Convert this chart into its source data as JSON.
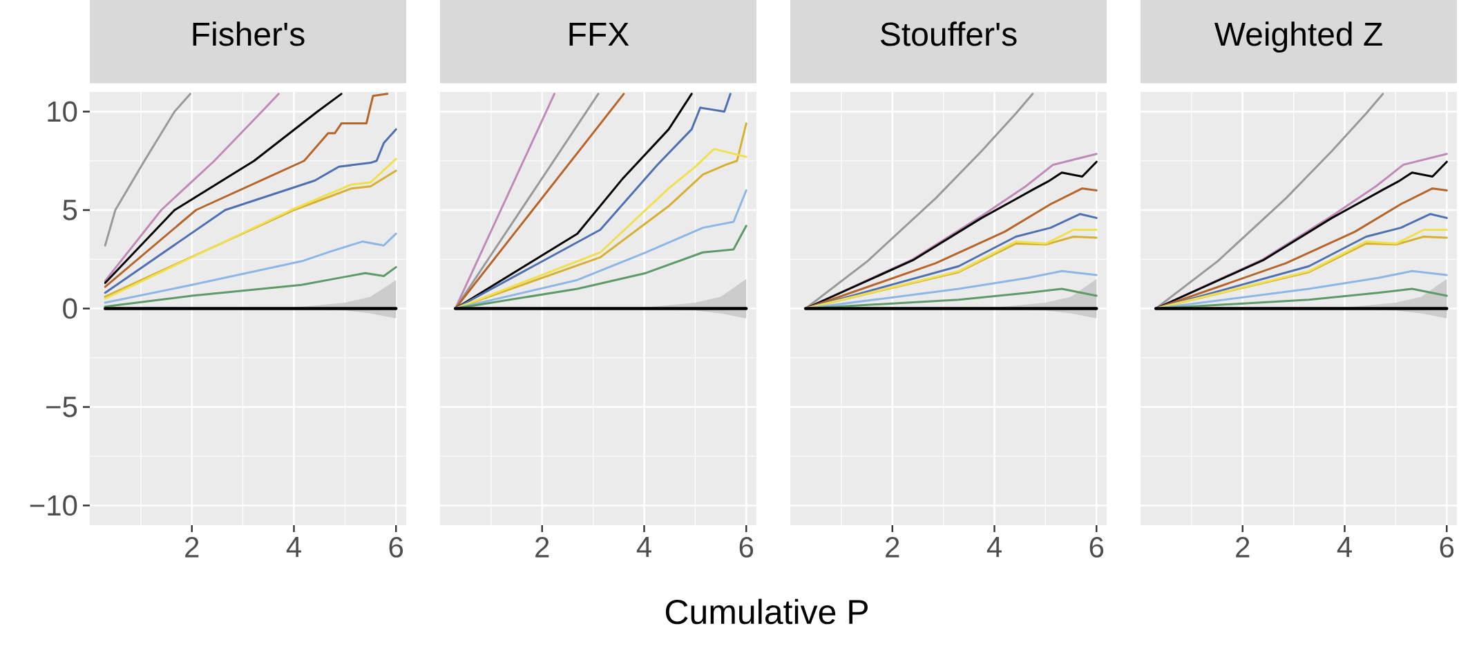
{
  "chart_data": [
    {
      "type": "line",
      "title": "Fisher's",
      "xlim": [
        0,
        6.2
      ],
      "ylim": [
        -11,
        11
      ],
      "xticks": [
        2,
        4,
        6
      ],
      "yticks": [
        {
          "value": -10,
          "label": "−10"
        },
        {
          "value": -5,
          "label": "−5"
        },
        0,
        5,
        10
      ],
      "grid": true,
      "series": [
        {
          "color": "#999999",
          "x": [
            0.3,
            0.5,
            1.07,
            1.66,
            1.97
          ],
          "values": [
            3.2,
            5.0,
            7.5,
            10,
            10.9
          ]
        },
        {
          "color": "#c08ab8",
          "x": [
            0.3,
            1.4,
            2.44,
            3.37,
            3.7
          ],
          "values": [
            1.4,
            5,
            7.5,
            10,
            10.9
          ]
        },
        {
          "color": "#000000",
          "x": [
            0.3,
            1.66,
            3.22,
            4.46,
            4.93
          ],
          "values": [
            1.3,
            5,
            7.5,
            10,
            10.9
          ]
        },
        {
          "color": "#b5642a",
          "x": [
            0.3,
            2.08,
            4.2,
            4.67,
            4.8,
            4.93,
            5.42,
            5.55,
            5.83
          ],
          "values": [
            1.1,
            5,
            7.5,
            8.9,
            8.9,
            9.4,
            9.4,
            10.8,
            10.9
          ]
        },
        {
          "color": "#4e6fb0",
          "x": [
            0.3,
            2.65,
            4.41,
            4.88,
            5.5,
            5.62,
            5.76,
            6
          ],
          "values": [
            0.8,
            5,
            6.5,
            7.2,
            7.4,
            7.5,
            8.4,
            9.1
          ]
        },
        {
          "color": "#d6b030",
          "x": [
            0.3,
            4.0,
            5.13,
            5.5,
            6
          ],
          "values": [
            0.6,
            5,
            6.1,
            6.2,
            7.0
          ]
        },
        {
          "color": "#f0e050",
          "x": [
            0.3,
            3.94,
            5.13,
            5.5,
            6
          ],
          "values": [
            0.5,
            5,
            6.3,
            6.4,
            7.6
          ]
        },
        {
          "color": "#8db6e5",
          "x": [
            0.3,
            2,
            4.15,
            4.72,
            5.34,
            5.76,
            6
          ],
          "values": [
            0.3,
            1.2,
            2.4,
            2.9,
            3.4,
            3.2,
            3.8
          ]
        },
        {
          "color": "#5e9a68",
          "x": [
            0.3,
            2,
            4.15,
            4.98,
            5.4,
            5.76,
            6
          ],
          "values": [
            0.1,
            0.65,
            1.2,
            1.6,
            1.8,
            1.65,
            2.1
          ]
        },
        {
          "color": "#000000",
          "x": [
            0.3,
            3,
            4,
            5,
            5.5,
            6
          ],
          "values": [
            0,
            0,
            0,
            0,
            0,
            0
          ],
          "lower": [
            0,
            0,
            -0.02,
            -0.1,
            -0.25,
            -0.5
          ],
          "upper": [
            0,
            0,
            0.05,
            0.3,
            0.6,
            1.45
          ]
        }
      ]
    },
    {
      "type": "line",
      "title": "FFX",
      "xlabel": "Cumulative P",
      "xlim": [
        0,
        6.2
      ],
      "ylim": [
        -11,
        11
      ],
      "xticks": [
        2,
        4,
        6
      ],
      "yticks": [
        -10,
        -5,
        0,
        5,
        10
      ],
      "grid": true,
      "tick_labels": "x",
      "series": [
        {
          "color": "#c08ab8",
          "x": [
            0.3,
            2.24
          ],
          "values": [
            0,
            10.9
          ]
        },
        {
          "color": "#999999",
          "x": [
            0.3,
            3.1
          ],
          "values": [
            0,
            10.9
          ]
        },
        {
          "color": "#b5642a",
          "x": [
            0.3,
            3.6
          ],
          "values": [
            0,
            10.9
          ]
        },
        {
          "color": "#000000",
          "x": [
            0.3,
            2.69,
            3.58,
            4.48,
            4.93
          ],
          "values": [
            0,
            3.8,
            6.6,
            9.1,
            10.9
          ]
        },
        {
          "color": "#4e6fb0",
          "x": [
            0.3,
            3.14,
            4.26,
            4.93,
            5.1,
            5.57,
            5.69
          ],
          "values": [
            0,
            4.0,
            7.3,
            9.1,
            10.2,
            10.0,
            10.9
          ]
        },
        {
          "color": "#d6b030",
          "x": [
            0.3,
            3.14,
            4.48,
            5.15,
            5.6,
            5.82,
            6
          ],
          "values": [
            0,
            2.6,
            5.2,
            6.8,
            7.3,
            7.5,
            9.4
          ]
        },
        {
          "color": "#f0e050",
          "x": [
            0.3,
            3.14,
            4.48,
            5.0,
            5.37,
            6
          ],
          "values": [
            0,
            2.85,
            6.1,
            7.2,
            8.1,
            7.7
          ]
        },
        {
          "color": "#8db6e5",
          "x": [
            0.3,
            2.69,
            4.03,
            5.15,
            5.75,
            6
          ],
          "values": [
            0,
            1.45,
            2.85,
            4.1,
            4.4,
            6.0
          ]
        },
        {
          "color": "#5e9a68",
          "x": [
            0.3,
            2.69,
            4.03,
            5.15,
            5.75,
            6
          ],
          "values": [
            0,
            1.0,
            1.8,
            2.85,
            3.0,
            4.2
          ]
        },
        {
          "color": "#000000",
          "x": [
            0.3,
            3,
            4,
            5,
            5.5,
            6
          ],
          "values": [
            0,
            0,
            0,
            0,
            0,
            0
          ],
          "lower": [
            0,
            0,
            -0.02,
            -0.1,
            -0.25,
            -0.5
          ],
          "upper": [
            0,
            0,
            0.05,
            0.3,
            0.6,
            1.5
          ]
        }
      ]
    },
    {
      "type": "line",
      "title": "Stouffer's",
      "xlim": [
        0,
        6.2
      ],
      "ylim": [
        -11,
        11
      ],
      "xticks": [
        2,
        4,
        6
      ],
      "yticks": [
        -10,
        -5,
        0,
        5,
        10
      ],
      "grid": true,
      "tick_labels": "x",
      "series": [
        {
          "color": "#999999",
          "x": [
            0.3,
            1.51,
            2.85,
            3.75,
            4.42,
            4.75
          ],
          "values": [
            0,
            2.4,
            5.6,
            8.0,
            9.9,
            10.9
          ]
        },
        {
          "color": "#c08ab8",
          "x": [
            0.3,
            2.4,
            3.75,
            4.61,
            5.15,
            6
          ],
          "values": [
            0,
            2.5,
            4.7,
            6.2,
            7.3,
            7.85
          ]
        },
        {
          "color": "#000000",
          "x": [
            0.3,
            2.4,
            3.75,
            4.38,
            4.76,
            5.05,
            5.32,
            5.72,
            6
          ],
          "values": [
            0,
            2.45,
            4.6,
            5.5,
            6.05,
            6.45,
            6.9,
            6.7,
            7.45
          ]
        },
        {
          "color": "#b5642a",
          "x": [
            0.3,
            2.85,
            4.2,
            5.1,
            5.72,
            6
          ],
          "values": [
            0,
            2.3,
            3.9,
            5.3,
            6.1,
            6.0
          ]
        },
        {
          "color": "#4e6fb0",
          "x": [
            0.3,
            3.3,
            4.42,
            5.1,
            5.68,
            6
          ],
          "values": [
            0,
            2.15,
            3.65,
            4.1,
            4.8,
            4.6
          ]
        },
        {
          "color": "#d6b030",
          "x": [
            0.3,
            3.3,
            4.42,
            5.01,
            5.55,
            6
          ],
          "values": [
            0,
            1.85,
            3.3,
            3.25,
            3.65,
            3.6
          ]
        },
        {
          "color": "#f0e050",
          "x": [
            0.3,
            3.3,
            4.42,
            5.01,
            5.55,
            6
          ],
          "values": [
            0,
            1.9,
            3.4,
            3.3,
            4.0,
            4.0
          ]
        },
        {
          "color": "#8db6e5",
          "x": [
            0.3,
            3.3,
            4.65,
            5.32,
            6
          ],
          "values": [
            0,
            1.0,
            1.55,
            1.9,
            1.7
          ]
        },
        {
          "color": "#5e9a68",
          "x": [
            0.3,
            3.3,
            4.65,
            5.32,
            6
          ],
          "values": [
            0,
            0.45,
            0.8,
            1.0,
            0.65
          ]
        },
        {
          "color": "#000000",
          "x": [
            0.3,
            3,
            4,
            5,
            5.5,
            6
          ],
          "values": [
            0,
            0,
            0,
            0,
            0,
            0
          ],
          "lower": [
            0,
            0,
            -0.02,
            -0.1,
            -0.25,
            -0.5
          ],
          "upper": [
            0,
            0,
            0.05,
            0.3,
            0.6,
            1.5
          ]
        }
      ]
    },
    {
      "type": "line",
      "title": "Weighted Z",
      "xlim": [
        0,
        6.2
      ],
      "ylim": [
        -11,
        11
      ],
      "xticks": [
        2,
        4,
        6
      ],
      "yticks": [
        -10,
        -5,
        0,
        5,
        10
      ],
      "grid": true,
      "tick_labels": "x",
      "series": [
        {
          "color": "#999999",
          "x": [
            0.3,
            1.51,
            2.85,
            3.75,
            4.42,
            4.75
          ],
          "values": [
            0,
            2.4,
            5.6,
            8.0,
            9.9,
            10.9
          ]
        },
        {
          "color": "#c08ab8",
          "x": [
            0.3,
            2.4,
            3.75,
            4.61,
            5.15,
            6
          ],
          "values": [
            0,
            2.5,
            4.7,
            6.2,
            7.3,
            7.85
          ]
        },
        {
          "color": "#000000",
          "x": [
            0.3,
            2.4,
            3.75,
            4.38,
            4.76,
            5.05,
            5.32,
            5.72,
            6
          ],
          "values": [
            0,
            2.45,
            4.6,
            5.5,
            6.05,
            6.45,
            6.9,
            6.7,
            7.45
          ]
        },
        {
          "color": "#b5642a",
          "x": [
            0.3,
            2.85,
            4.2,
            5.1,
            5.72,
            6
          ],
          "values": [
            0,
            2.3,
            3.9,
            5.3,
            6.1,
            6.0
          ]
        },
        {
          "color": "#4e6fb0",
          "x": [
            0.3,
            3.3,
            4.42,
            5.1,
            5.68,
            6
          ],
          "values": [
            0,
            2.15,
            3.65,
            4.1,
            4.8,
            4.6
          ]
        },
        {
          "color": "#d6b030",
          "x": [
            0.3,
            3.3,
            4.42,
            5.01,
            5.55,
            6
          ],
          "values": [
            0,
            1.85,
            3.3,
            3.25,
            3.65,
            3.6
          ]
        },
        {
          "color": "#f0e050",
          "x": [
            0.3,
            3.3,
            4.42,
            5.01,
            5.55,
            6
          ],
          "values": [
            0,
            1.9,
            3.4,
            3.3,
            4.0,
            4.0
          ]
        },
        {
          "color": "#8db6e5",
          "x": [
            0.3,
            3.3,
            4.65,
            5.32,
            6
          ],
          "values": [
            0,
            1.0,
            1.55,
            1.9,
            1.7
          ]
        },
        {
          "color": "#5e9a68",
          "x": [
            0.3,
            3.3,
            4.65,
            5.32,
            6
          ],
          "values": [
            0,
            0.45,
            0.8,
            1.0,
            0.65
          ]
        },
        {
          "color": "#000000",
          "x": [
            0.3,
            3,
            4,
            5,
            5.5,
            6
          ],
          "values": [
            0,
            0,
            0,
            0,
            0,
            0
          ],
          "lower": [
            0,
            0,
            -0.02,
            -0.1,
            -0.25,
            -0.5
          ],
          "upper": [
            0,
            0,
            0.05,
            0.3,
            0.6,
            1.5
          ]
        }
      ]
    }
  ]
}
